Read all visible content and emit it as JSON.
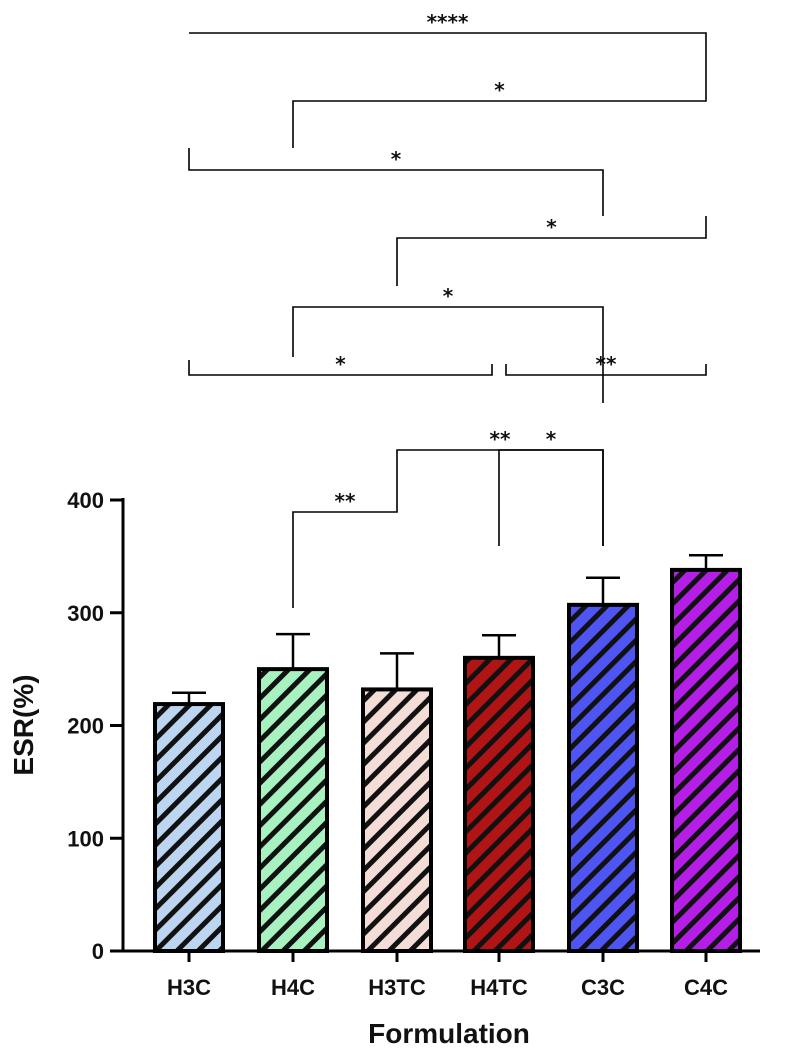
{
  "chart_data": {
    "type": "bar",
    "xlabel": "Formulation",
    "ylabel": "ESR(%)",
    "ylim": [
      0,
      400
    ],
    "yticks": [
      0,
      100,
      200,
      300,
      400
    ],
    "categories": [
      "H3C",
      "H4C",
      "H3TC",
      "H4TC",
      "C3C",
      "C4C"
    ],
    "values": [
      219,
      250,
      232,
      260,
      307,
      338
    ],
    "errors": [
      10,
      31,
      32,
      20,
      24,
      13
    ],
    "colors": [
      "#bcd6f2",
      "#a8f2c0",
      "#f4ddd6",
      "#b01414",
      "#4f55f2",
      "#b41ee6"
    ],
    "hatch": "diagonal stripes",
    "significance": [
      {
        "from": "H4C",
        "to": "H3TC",
        "label": "**"
      },
      {
        "from": "H4TC",
        "to": "C3C",
        "label": "*"
      },
      {
        "from": "H3TC",
        "to": "C3C",
        "label": "**"
      },
      {
        "from": "H3C",
        "to": "H4TC",
        "label": "*"
      },
      {
        "from": "H4TC",
        "to": "C4C",
        "label": "**"
      },
      {
        "from": "H4C",
        "to": "C3C",
        "label": "*"
      },
      {
        "from": "H3TC",
        "to": "C4C",
        "label": "*"
      },
      {
        "from": "H3C",
        "to": "C3C",
        "label": "*"
      },
      {
        "from": "H4C",
        "to": "C4C",
        "label": "*"
      },
      {
        "from": "H3C",
        "to": "C4C",
        "label": "****"
      }
    ]
  }
}
